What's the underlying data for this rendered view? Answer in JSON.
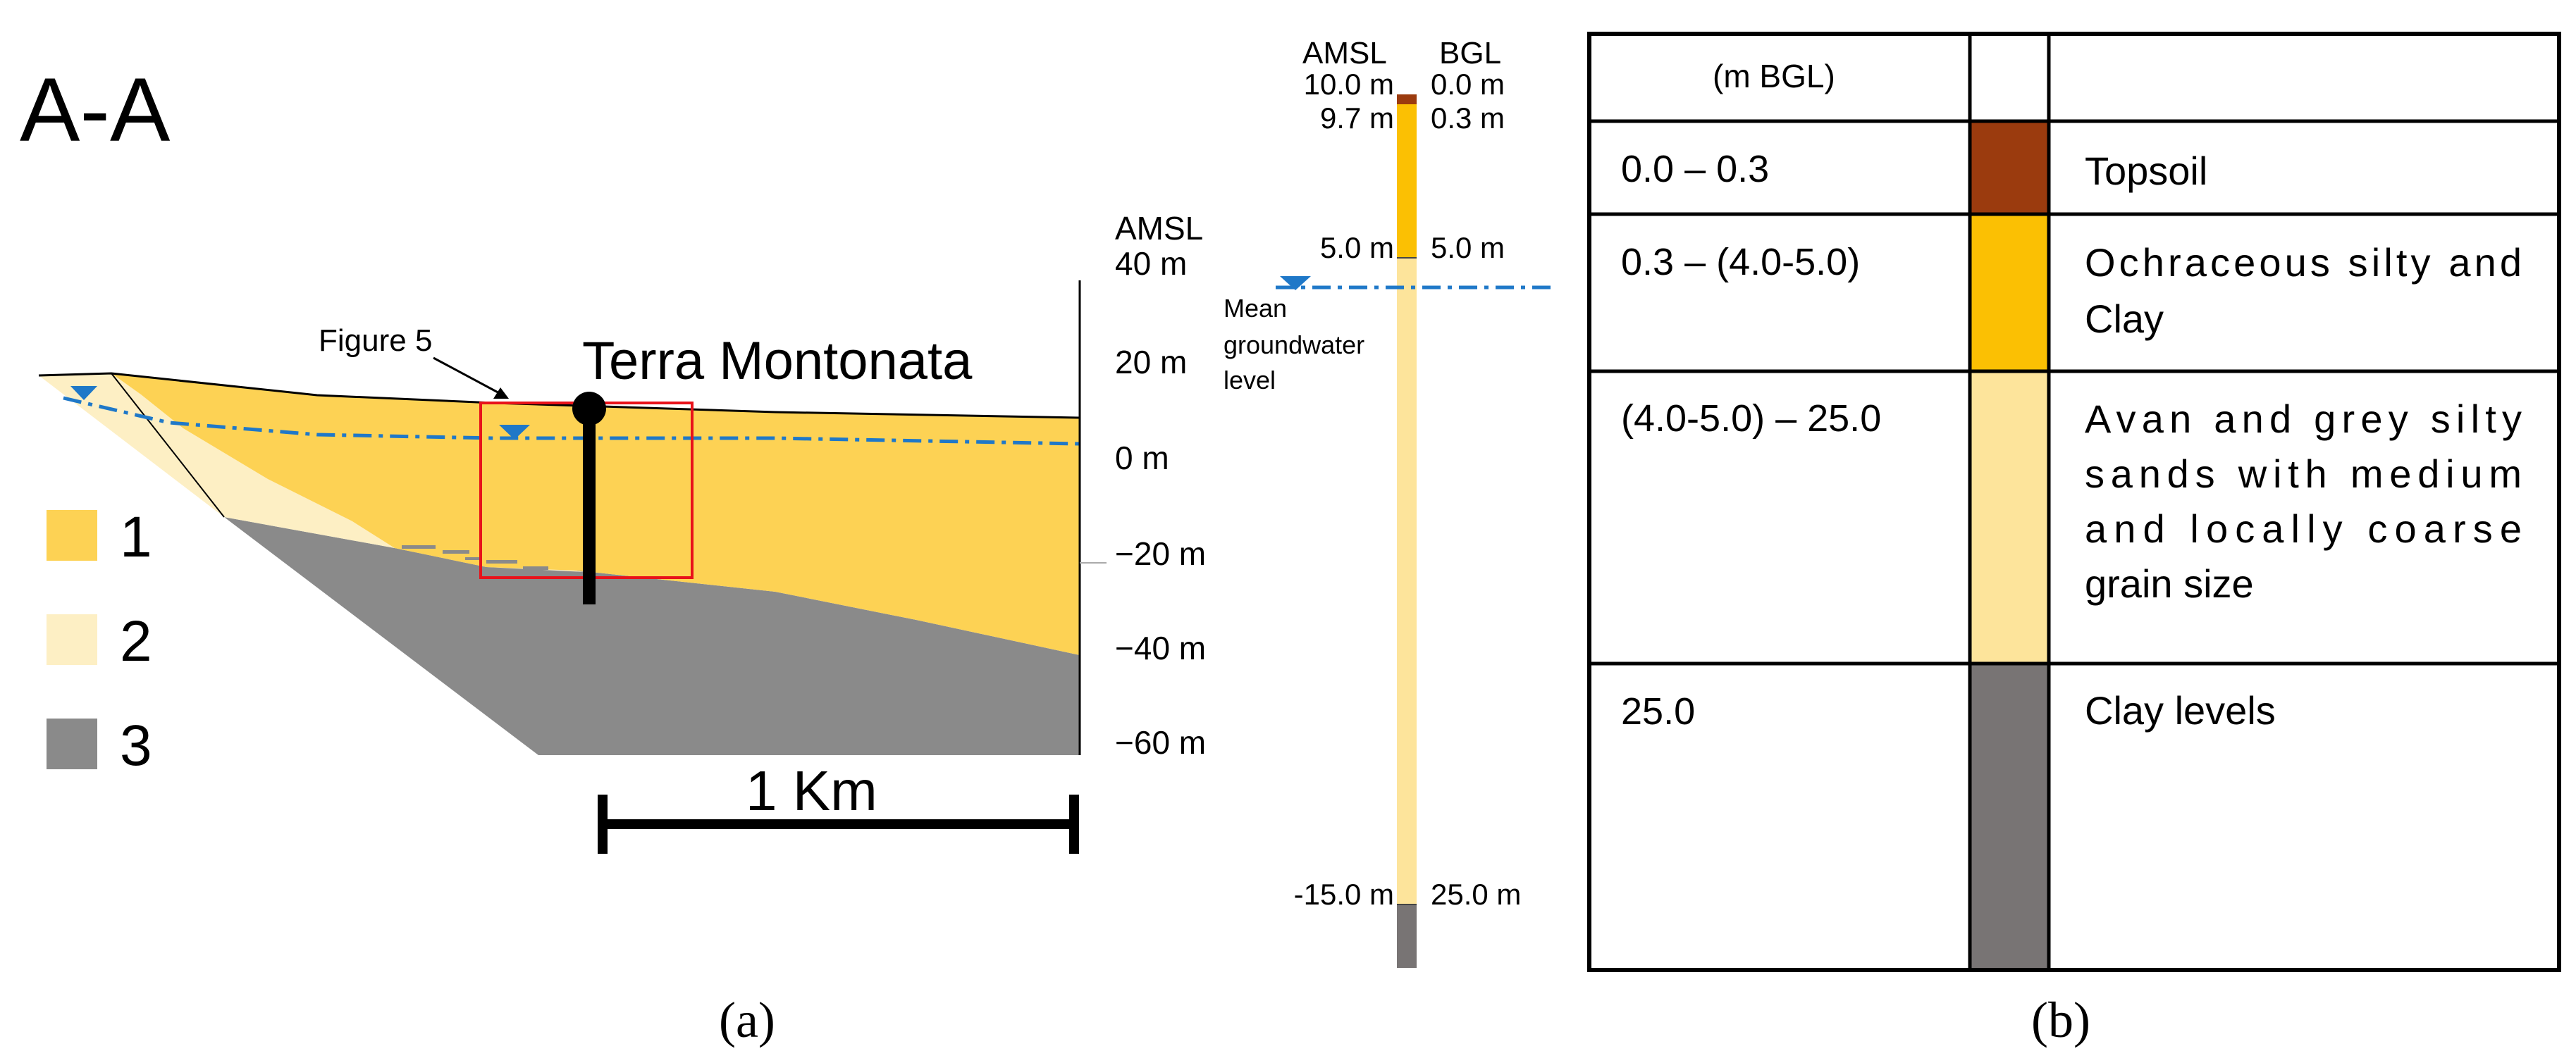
{
  "panel_a": {
    "section_title": "A-A",
    "site_name": "Terra Montonata",
    "figure_ref": "Figure 5",
    "amsl_header": "AMSL",
    "elevation_ticks": [
      "40 m",
      "20 m",
      "0 m",
      "−20 m",
      "−40 m",
      "−60 m"
    ],
    "legend": [
      {
        "label": "1",
        "color": "#fdd254"
      },
      {
        "label": "2",
        "color": "#fdefc4"
      },
      {
        "label": "3",
        "color": "#8a8a8a"
      }
    ],
    "scale_bar_label": "1 Km",
    "caption": "(a)"
  },
  "borehole_log": {
    "amsl_header": "AMSL",
    "bgl_header": "BGL",
    "rows": [
      {
        "amsl": "10.0 m",
        "bgl": "0.0 m"
      },
      {
        "amsl": "9.7 m",
        "bgl": "0.3 m"
      },
      {
        "amsl": "5.0 m",
        "bgl": "5.0 m"
      },
      {
        "amsl": "-15.0 m",
        "bgl": "25.0 m"
      }
    ],
    "groundwater_label": [
      "Mean",
      "groundwater",
      "level"
    ]
  },
  "panel_b": {
    "header_depth": "(m BGL)",
    "rows": [
      {
        "depth": "0.0 – 0.3",
        "color": "#9b3b0e",
        "description": [
          "Topsoil"
        ]
      },
      {
        "depth": "0.3 – (4.0-5.0)",
        "color": "#fbc003",
        "description": [
          "Ochraceous silty and",
          "Clay"
        ]
      },
      {
        "depth": "(4.0-5.0) – 25.0",
        "color": "#fde49b",
        "description": [
          "Avan and grey silty",
          "sands with medium",
          "and locally coarse",
          "grain size"
        ]
      },
      {
        "depth": "25.0",
        "color": "#787474",
        "description": [
          "Clay levels"
        ]
      }
    ],
    "caption": "(b)"
  },
  "colors": {
    "unit1": "#fdd254",
    "unit2": "#fdefc4",
    "unit3": "#8a8a8a",
    "groundwater": "#1f78c8",
    "highlight_box": "#e8121a"
  }
}
